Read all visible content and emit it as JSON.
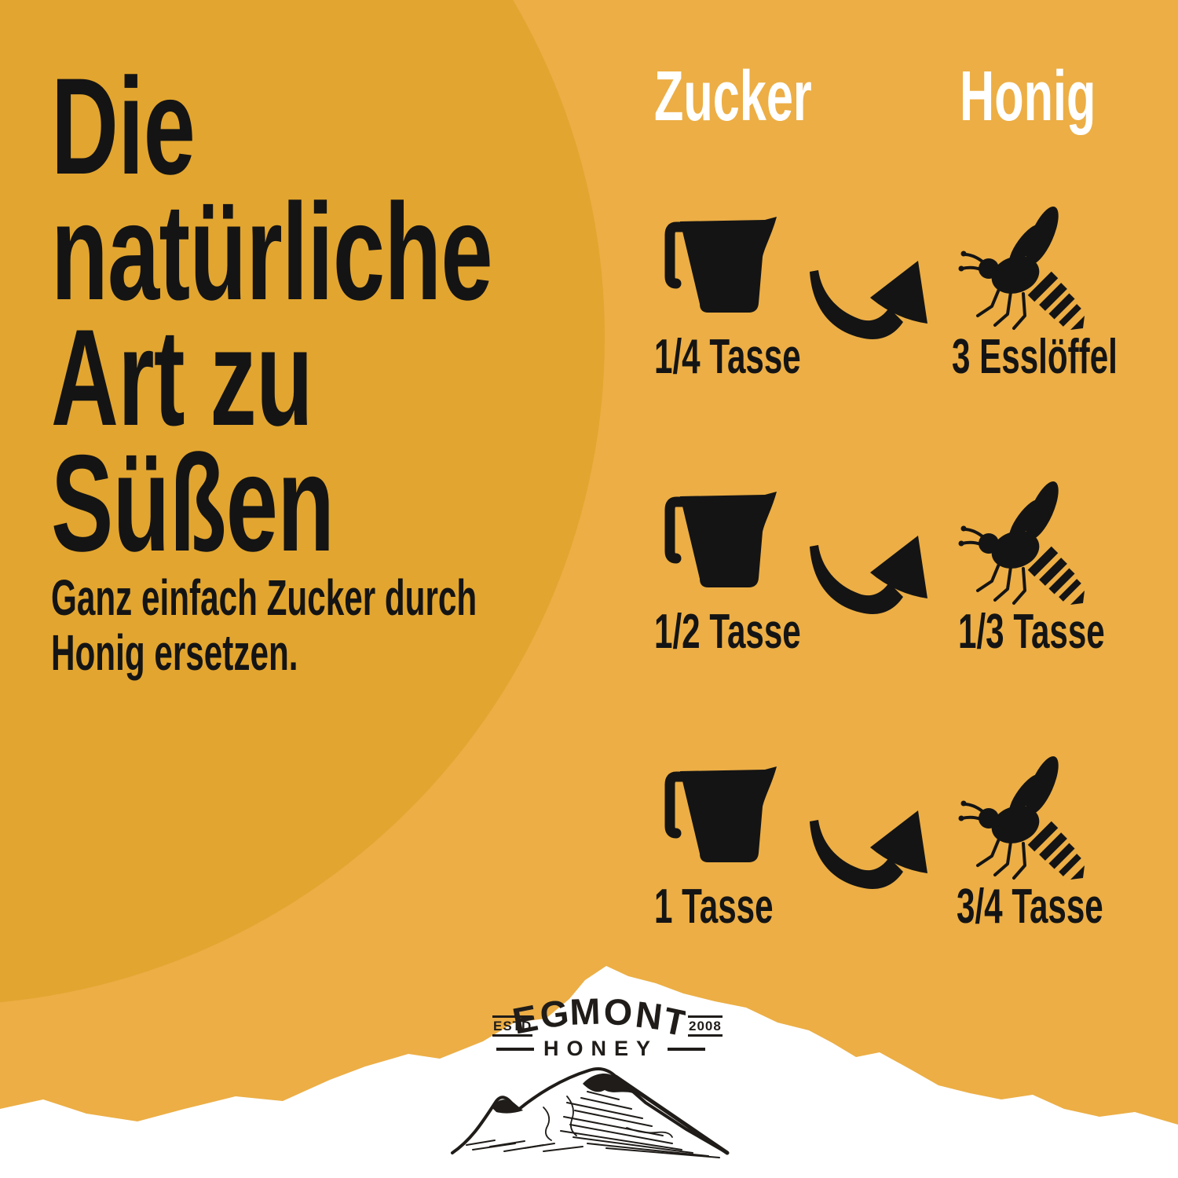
{
  "colors": {
    "background": "#ECAE45",
    "circle": "#E2A52F",
    "ink": "#141414",
    "white": "#FFFFFF",
    "logo_ink": "#1F1C19"
  },
  "headline": {
    "lines": [
      "Die",
      "natürliche",
      "Art zu",
      "Süßen"
    ]
  },
  "subtitle": {
    "lines": [
      "Ganz einfach Zucker durch",
      "Honig ersetzen."
    ]
  },
  "table": {
    "col_sugar": "Zucker",
    "col_honey": "Honig",
    "rows": [
      {
        "sugar": "1/4 Tasse",
        "honey": "3 Esslöffel"
      },
      {
        "sugar": "1/2 Tasse",
        "honey": "1/3 Tasse"
      },
      {
        "sugar": "1 Tasse",
        "honey": "3/4 Tasse"
      }
    ]
  },
  "logo": {
    "estd": "ESTD",
    "year": "2008",
    "brand": "EGMONT",
    "sub": "HONEY"
  },
  "icons": {
    "cup": "measuring-cup-icon",
    "arrow": "curved-arrow-icon",
    "bee": "bee-icon",
    "mountain": "mountain-sketch-icon"
  }
}
